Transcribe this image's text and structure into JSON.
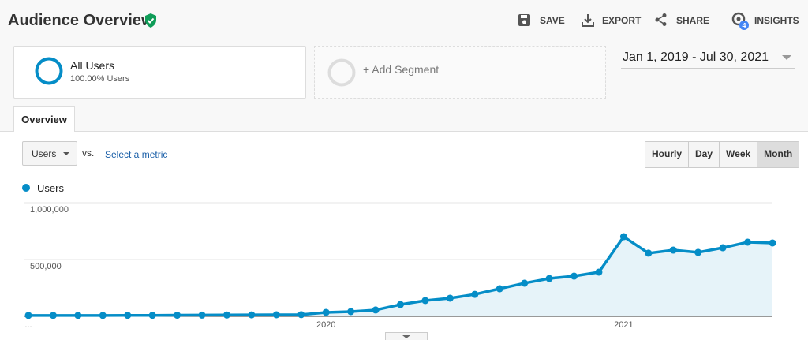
{
  "header": {
    "title": "Audience Overview",
    "actions": [
      "SAVE",
      "EXPORT",
      "SHARE",
      "INSIGHTS"
    ],
    "insights_badge": 4
  },
  "segments": {
    "active": {
      "name": "All Users",
      "detail": "100.00% Users"
    },
    "add": "+ Add Segment"
  },
  "date_range": "Jan 1, 2019 - Jul 30, 2021",
  "tabs": [
    "Overview"
  ],
  "controls": {
    "metric": "Users",
    "vs": "vs.",
    "select_metric": "Select a metric",
    "granularity": [
      "Hourly",
      "Day",
      "Week",
      "Month"
    ],
    "selected_granularity": "Month"
  },
  "chart_data": {
    "type": "line",
    "categories": [
      "...",
      null,
      null,
      null,
      null,
      null,
      null,
      null,
      null,
      null,
      null,
      null,
      "2020",
      null,
      null,
      null,
      null,
      null,
      null,
      null,
      null,
      null,
      null,
      null,
      "2021",
      null,
      null,
      null,
      null,
      null,
      null
    ],
    "series": [
      {
        "name": "Users",
        "color": "#058dc7",
        "values": [
          8000,
          8000,
          8000,
          8000,
          9000,
          9000,
          10000,
          11000,
          12000,
          13000,
          14000,
          15000,
          35000,
          42000,
          56000,
          104000,
          139000,
          160000,
          194000,
          243000,
          292000,
          333000,
          354000,
          389000,
          701000,
          556000,
          583000,
          563000,
          604000,
          653000,
          646000
        ]
      }
    ],
    "ylim": [
      0,
      1000000
    ],
    "yticks": [
      {
        "value": 500000,
        "label": "500,000"
      },
      {
        "value": 1000000,
        "label": "1,000,000"
      }
    ],
    "grid": true,
    "area": true
  }
}
